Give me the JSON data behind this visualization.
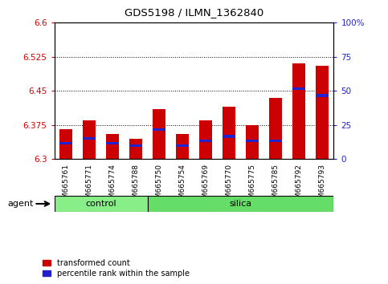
{
  "title": "GDS5198 / ILMN_1362840",
  "samples": [
    "GSM665761",
    "GSM665771",
    "GSM665774",
    "GSM665788",
    "GSM665750",
    "GSM665754",
    "GSM665769",
    "GSM665770",
    "GSM665775",
    "GSM665785",
    "GSM665792",
    "GSM665793"
  ],
  "groups": [
    "control",
    "control",
    "control",
    "control",
    "silica",
    "silica",
    "silica",
    "silica",
    "silica",
    "silica",
    "silica",
    "silica"
  ],
  "red_values": [
    6.365,
    6.385,
    6.355,
    6.345,
    6.41,
    6.355,
    6.385,
    6.415,
    6.375,
    6.435,
    6.51,
    6.505
  ],
  "blue_values": [
    6.335,
    6.345,
    6.335,
    6.33,
    6.365,
    6.33,
    6.34,
    6.35,
    6.34,
    6.34,
    6.455,
    6.44
  ],
  "y_min": 6.3,
  "y_max": 6.6,
  "y_ticks_left": [
    6.3,
    6.375,
    6.45,
    6.525,
    6.6
  ],
  "y_ticks_right": [
    0,
    25,
    50,
    75,
    100
  ],
  "bar_width": 0.55,
  "red_color": "#cc0000",
  "blue_color": "#2222cc",
  "control_color": "#88ee88",
  "silica_color": "#66dd66",
  "agent_label": "agent",
  "legend_red": "transformed count",
  "legend_blue": "percentile rank within the sample"
}
